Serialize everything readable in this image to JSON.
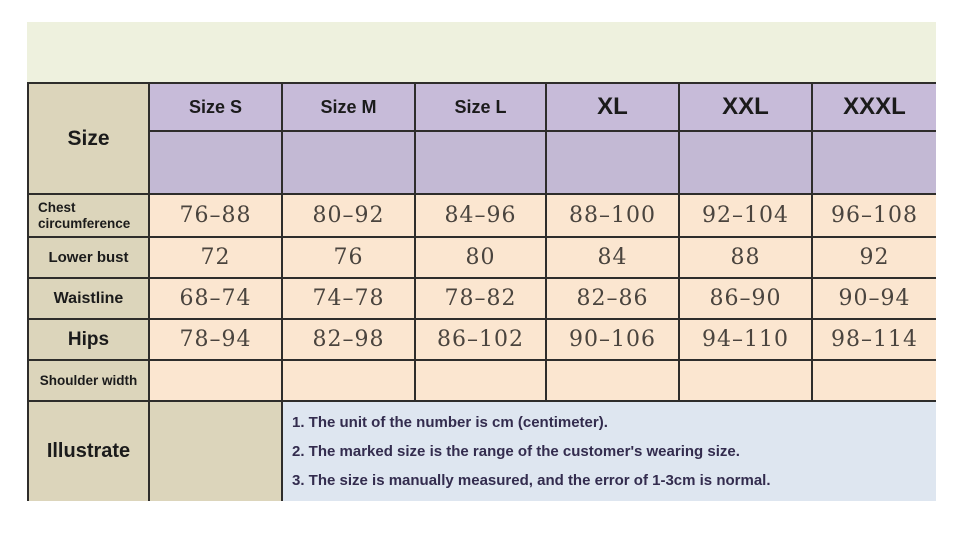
{
  "size_chart": {
    "corner_label": "Size",
    "sizes": [
      "Size S",
      "Size M",
      "Size L",
      "XL",
      "XXL",
      "XXXL"
    ],
    "rows": [
      {
        "label": "Chest circumference",
        "values": [
          "76–88",
          "80–92",
          "84–96",
          "88–100",
          "92–104",
          "96–108"
        ]
      },
      {
        "label": "Lower bust",
        "values": [
          "72",
          "76",
          "80",
          "84",
          "88",
          "92"
        ]
      },
      {
        "label": "Waistline",
        "values": [
          "68–74",
          "74–78",
          "78–82",
          "82–86",
          "86–90",
          "90–94"
        ]
      },
      {
        "label": "Hips",
        "values": [
          "78–94",
          "82–98",
          "86–102",
          "90–106",
          "94–110",
          "98–114"
        ]
      },
      {
        "label": "Shoulder width",
        "values": [
          "",
          "",
          "",
          "",
          "",
          ""
        ]
      }
    ],
    "illustrate_label": "Illustrate",
    "notes": [
      "1. The unit of the number is cm (centimeter).",
      "2. The marked size is the range of the customer's wearing size.",
      "3. The size is manually measured, and the error of 1-3cm is normal."
    ],
    "unit": "cm"
  },
  "colors": {
    "panel_band": "#eef1de",
    "label_cell": "#dcd5bb",
    "header_cell": "#c7bbd9",
    "data_cell": "#fbe6d0",
    "notes_cell": "#dee6f0",
    "border": "#2e2d2b"
  }
}
